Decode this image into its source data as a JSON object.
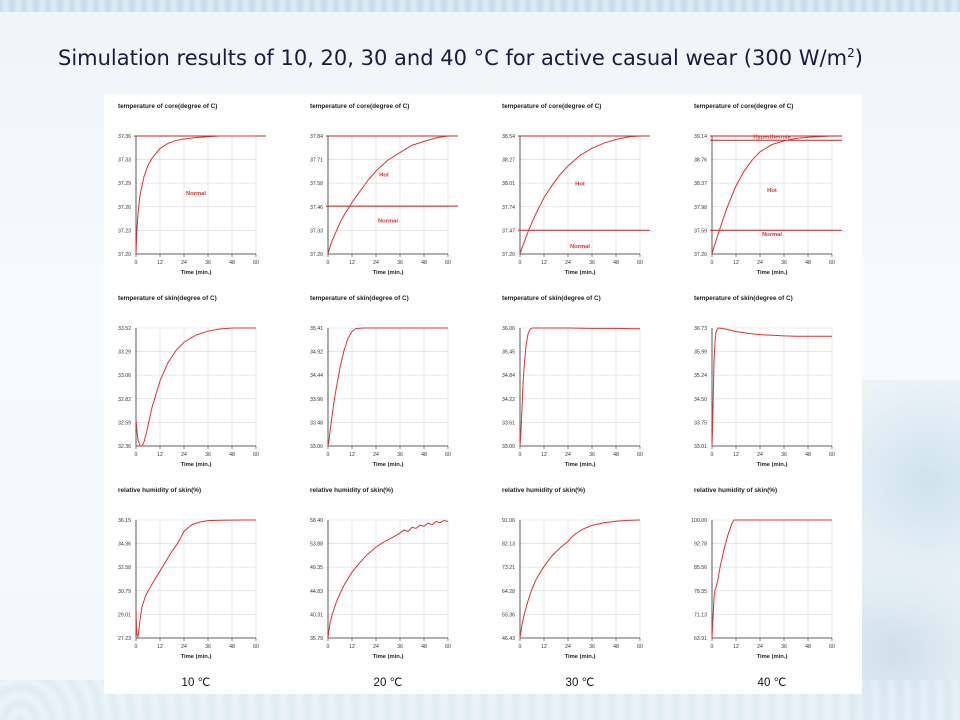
{
  "title": {
    "text": "Simulation results of 10, 20, 30 and 40 °C for active casual wear (300 W/m",
    "superscript": "2",
    "close": ")"
  },
  "column_labels": [
    "10 ℃",
    "20 ℃",
    "30 ℃",
    "40 ℃"
  ],
  "colors": {
    "curve": "#e03030",
    "threshold": "#c82020",
    "grid": "#d8d8d8",
    "axis": "#333333",
    "label": "#e03030"
  },
  "chart_data": [
    {
      "type": "line",
      "title": "temperature of core(degree of C)",
      "xlabel": "Time (min.)",
      "xticks": [
        0,
        12,
        24,
        36,
        48,
        60
      ],
      "xlim": [
        0,
        60
      ],
      "yticks": [
        "37.36",
        "37.33",
        "37.29",
        "37.26",
        "37.23",
        "37.20"
      ],
      "ylim": [
        37.2,
        37.36
      ],
      "series": [
        {
          "x": [
            0,
            0.5,
            1,
            2,
            4,
            6,
            8,
            12,
            16,
            20,
            24,
            30,
            36,
            42,
            48,
            54,
            60
          ],
          "y": [
            37.2,
            37.235,
            37.255,
            37.28,
            37.305,
            37.32,
            37.33,
            37.343,
            37.35,
            37.354,
            37.356,
            37.358,
            37.359,
            37.36,
            37.36,
            37.36,
            37.36
          ]
        }
      ],
      "thresholds": [
        37.36
      ],
      "annotations": [
        {
          "text": "Normal",
          "x": 30,
          "y": 37.28
        }
      ]
    },
    {
      "type": "line",
      "title": "temperature of core(degree of C)",
      "xlabel": "Time (min.)",
      "xticks": [
        0,
        12,
        24,
        36,
        48,
        60
      ],
      "xlim": [
        0,
        60
      ],
      "yticks": [
        "37.84",
        "37.71",
        "37.58",
        "37.46",
        "37.33",
        "37.20"
      ],
      "ylim": [
        37.2,
        37.84
      ],
      "series": [
        {
          "x": [
            0,
            1,
            2,
            4,
            6,
            8,
            12,
            16,
            20,
            24,
            30,
            36,
            42,
            48,
            54,
            60
          ],
          "y": [
            37.2,
            37.24,
            37.27,
            37.32,
            37.37,
            37.41,
            37.48,
            37.54,
            37.6,
            37.65,
            37.71,
            37.75,
            37.79,
            37.81,
            37.83,
            37.84
          ]
        }
      ],
      "thresholds": [
        37.84,
        37.46
      ],
      "annotations": [
        {
          "text": "Hot",
          "x": 28,
          "y": 37.62
        },
        {
          "text": "Normal",
          "x": 30,
          "y": 37.37
        }
      ]
    },
    {
      "type": "line",
      "title": "temperature of core(degree of C)",
      "xlabel": "Time (min.)",
      "xticks": [
        0,
        12,
        24,
        36,
        48,
        60
      ],
      "xlim": [
        0,
        60
      ],
      "yticks": [
        "38.54",
        "38.27",
        "38.01",
        "37.74",
        "37.47",
        "37.20"
      ],
      "ylim": [
        37.2,
        38.54
      ],
      "series": [
        {
          "x": [
            0,
            1,
            2,
            4,
            6,
            8,
            12,
            16,
            20,
            24,
            30,
            36,
            42,
            48,
            54,
            60
          ],
          "y": [
            37.2,
            37.27,
            37.33,
            37.45,
            37.56,
            37.66,
            37.84,
            37.98,
            38.1,
            38.2,
            38.32,
            38.4,
            38.46,
            38.5,
            38.53,
            38.54
          ]
        }
      ],
      "thresholds": [
        38.54,
        37.47
      ],
      "annotations": [
        {
          "text": "Hot",
          "x": 30,
          "y": 37.98
        },
        {
          "text": "Normal",
          "x": 30,
          "y": 37.27
        }
      ]
    },
    {
      "type": "line",
      "title": "temperature of core(degree of C)",
      "xlabel": "Time (min.)",
      "xticks": [
        0,
        12,
        24,
        36,
        48,
        60
      ],
      "xlim": [
        0,
        60
      ],
      "yticks": [
        "39.14",
        "38.76",
        "38.37",
        "37.98",
        "37.59",
        "37.20"
      ],
      "ylim": [
        37.2,
        39.14
      ],
      "series": [
        {
          "x": [
            0,
            1,
            2,
            4,
            6,
            8,
            12,
            16,
            20,
            24,
            30,
            36,
            42,
            48,
            54,
            60
          ],
          "y": [
            37.2,
            37.32,
            37.42,
            37.62,
            37.82,
            38.0,
            38.32,
            38.56,
            38.74,
            38.88,
            39.0,
            39.06,
            39.1,
            39.12,
            39.13,
            39.14
          ]
        }
      ],
      "thresholds": [
        39.14,
        39.07,
        37.59
      ],
      "annotations": [
        {
          "text": "Hyperthermia",
          "x": 30,
          "y": 39.1
        },
        {
          "text": "Hot",
          "x": 30,
          "y": 38.22
        },
        {
          "text": "Normal",
          "x": 30,
          "y": 37.5
        }
      ]
    },
    {
      "type": "line",
      "title": "temperature of skin(degree of C)",
      "xlabel": "Time (min.)",
      "xticks": [
        0,
        12,
        24,
        36,
        48,
        60
      ],
      "xlim": [
        0,
        60
      ],
      "yticks": [
        "33.52",
        "33.29",
        "33.06",
        "32.82",
        "32.59",
        "32.36"
      ],
      "ylim": [
        32.36,
        33.52
      ],
      "series": [
        {
          "x": [
            0,
            0.5,
            1,
            2,
            3,
            4,
            5,
            6,
            8,
            12,
            16,
            20,
            24,
            30,
            36,
            42,
            48,
            54,
            60
          ],
          "y": [
            32.62,
            32.5,
            32.42,
            32.36,
            32.36,
            32.4,
            32.47,
            32.56,
            32.74,
            33.0,
            33.18,
            33.3,
            33.38,
            33.45,
            33.49,
            33.51,
            33.52,
            33.52,
            33.52
          ]
        }
      ],
      "thresholds": [],
      "annotations": []
    },
    {
      "type": "line",
      "title": "temperature of skin(degree of C)",
      "xlabel": "Time (min.)",
      "xticks": [
        0,
        12,
        24,
        36,
        48,
        60
      ],
      "xlim": [
        0,
        60
      ],
      "yticks": [
        "35.41",
        "34.92",
        "34.44",
        "33.96",
        "33.48",
        "33.00"
      ],
      "ylim": [
        33.0,
        35.41
      ],
      "series": [
        {
          "x": [
            0,
            0.5,
            1,
            2,
            3,
            4,
            6,
            8,
            10,
            12,
            14,
            18,
            24,
            36,
            48,
            60
          ],
          "y": [
            33.0,
            33.1,
            33.3,
            33.6,
            33.9,
            34.15,
            34.6,
            34.95,
            35.2,
            35.34,
            35.4,
            35.41,
            35.41,
            35.41,
            35.41,
            35.41
          ]
        }
      ],
      "thresholds": [],
      "annotations": []
    },
    {
      "type": "line",
      "title": "temperature of skin(degree of C)",
      "xlabel": "Time (min.)",
      "xticks": [
        0,
        12,
        24,
        36,
        48,
        60
      ],
      "xlim": [
        0,
        60
      ],
      "yticks": [
        "36.06",
        "35.45",
        "34.84",
        "34.22",
        "33.61",
        "33.00"
      ],
      "ylim": [
        33.0,
        36.06
      ],
      "series": [
        {
          "x": [
            0,
            0.5,
            1,
            1.5,
            2,
            3,
            4,
            5,
            6,
            8,
            12,
            24,
            36,
            48,
            60
          ],
          "y": [
            33.0,
            33.4,
            34.0,
            34.6,
            35.0,
            35.6,
            35.9,
            36.02,
            36.06,
            36.06,
            36.06,
            36.06,
            36.05,
            36.05,
            36.04
          ]
        }
      ],
      "thresholds": [],
      "annotations": []
    },
    {
      "type": "line",
      "title": "temperature of skin(degree of C)",
      "xlabel": "Time (min.)",
      "xticks": [
        0,
        12,
        24,
        36,
        48,
        60
      ],
      "xlim": [
        0,
        60
      ],
      "yticks": [
        "36.73",
        "35.99",
        "35.24",
        "34.50",
        "33.75",
        "33.01"
      ],
      "ylim": [
        33.01,
        36.73
      ],
      "series": [
        {
          "x": [
            0,
            0.3,
            0.7,
            1,
            1.5,
            2,
            3,
            5,
            8,
            12,
            18,
            24,
            30,
            36,
            42,
            48,
            54,
            60
          ],
          "y": [
            33.01,
            33.6,
            34.8,
            35.7,
            36.3,
            36.6,
            36.73,
            36.72,
            36.68,
            36.62,
            36.56,
            36.52,
            36.5,
            36.48,
            36.47,
            36.47,
            36.47,
            36.47
          ]
        }
      ],
      "thresholds": [],
      "annotations": []
    },
    {
      "type": "line",
      "title": "relative humidity of skin(%)",
      "xlabel": "Time (min.)",
      "xticks": [
        0,
        12,
        24,
        36,
        48,
        60
      ],
      "xlim": [
        0,
        60
      ],
      "yticks": [
        "36.15",
        "34.36",
        "32.58",
        "30.79",
        "29.01",
        "27.23"
      ],
      "ylim": [
        27.23,
        36.15
      ],
      "series": [
        {
          "x": [
            0,
            0.3,
            1,
            2,
            3,
            5,
            8,
            12,
            16,
            18,
            20,
            22,
            24,
            28,
            32,
            36,
            42,
            48,
            54,
            60
          ],
          "y": [
            29.4,
            27.6,
            27.3,
            28.6,
            29.6,
            30.5,
            31.3,
            32.3,
            33.3,
            33.8,
            34.2,
            34.7,
            35.3,
            35.8,
            36.0,
            36.1,
            36.13,
            36.14,
            36.15,
            36.15
          ]
        }
      ],
      "thresholds": [],
      "annotations": []
    },
    {
      "type": "line",
      "title": "relative humidity of skin(%)",
      "xlabel": "Time (min.)",
      "xticks": [
        0,
        12,
        24,
        36,
        48,
        60
      ],
      "xlim": [
        0,
        60
      ],
      "yticks": [
        "58.40",
        "53.88",
        "49.35",
        "44.83",
        "40.31",
        "35.79"
      ],
      "ylim": [
        35.79,
        58.4
      ],
      "series": [
        {
          "x": [
            0,
            0.5,
            1,
            2,
            4,
            6,
            8,
            12,
            16,
            20,
            24,
            28,
            32,
            36,
            38,
            40,
            42,
            44,
            46,
            48,
            50,
            52,
            54,
            56,
            58,
            60
          ],
          "y": [
            35.79,
            37.3,
            38.6,
            40.2,
            42.5,
            44.3,
            45.9,
            48.4,
            50.3,
            51.9,
            53.2,
            54.2,
            55.0,
            55.9,
            56.5,
            56.2,
            57.0,
            56.8,
            57.4,
            57.2,
            57.8,
            57.5,
            58.1,
            57.9,
            58.3,
            58.1
          ]
        }
      ],
      "thresholds": [],
      "annotations": []
    },
    {
      "type": "line",
      "title": "relative humidity of skin(%)",
      "xlabel": "Time (min.)",
      "xticks": [
        0,
        12,
        24,
        36,
        48,
        60
      ],
      "xlim": [
        0,
        60
      ],
      "yticks": [
        "91.06",
        "82.13",
        "73.21",
        "64.28",
        "55.36",
        "46.43"
      ],
      "ylim": [
        46.43,
        91.06
      ],
      "series": [
        {
          "x": [
            0,
            0.5,
            1,
            2,
            4,
            6,
            8,
            12,
            16,
            20,
            24,
            26,
            28,
            32,
            36,
            42,
            48,
            54,
            60
          ],
          "y": [
            46.43,
            49.0,
            51.5,
            55.0,
            60.5,
            65.0,
            68.5,
            73.5,
            77.5,
            80.5,
            83.0,
            84.8,
            86.0,
            87.8,
            89.0,
            90.0,
            90.6,
            90.9,
            91.06
          ]
        }
      ],
      "thresholds": [],
      "annotations": []
    },
    {
      "type": "line",
      "title": "relative humidity of skin(%)",
      "xlabel": "Time (min.)",
      "xticks": [
        0,
        12,
        24,
        36,
        48,
        60
      ],
      "xlim": [
        0,
        60
      ],
      "yticks": [
        "100.00",
        "92.78",
        "85.56",
        "78.35",
        "71.13",
        "63.91"
      ],
      "ylim": [
        63.91,
        100.0
      ],
      "series": [
        {
          "x": [
            0,
            0.5,
            1,
            1.5,
            2,
            3,
            4,
            6,
            8,
            10,
            11,
            12,
            24,
            36,
            48,
            60
          ],
          "y": [
            63.91,
            70.0,
            76.0,
            78.6,
            79.3,
            82.0,
            85.5,
            91.0,
            95.5,
            99.0,
            100.0,
            100.0,
            100.0,
            100.0,
            100.0,
            100.0
          ]
        }
      ],
      "thresholds": [],
      "annotations": []
    }
  ]
}
